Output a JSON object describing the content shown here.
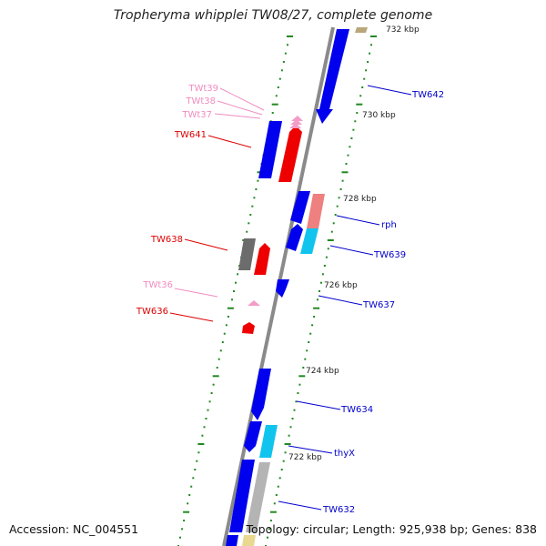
{
  "title": "Tropheryma whipplei TW08/27, complete genome",
  "footer": {
    "accession": "Accession: NC_004551",
    "topology": "Topology: circular; Length: 925,938 bp; Genes: 838"
  },
  "colors": {
    "cds_blue": "#0000ee",
    "trna_pink": "#f39cc8",
    "pseudo_red": "#ee0000",
    "rrna_salmon": "#ee8080",
    "cyan": "#11c4ee",
    "gray": "#777777",
    "backbone": "#888888",
    "ticks": "#228822"
  },
  "scale_labels": [
    "732 kbp",
    "730 kbp",
    "728 kbp",
    "726 kbp",
    "724 kbp",
    "722 kbp"
  ],
  "gene_labels": [
    {
      "text": "TW642",
      "color": "#0000cc"
    },
    {
      "text": "TWt39",
      "color": "#f08cc0"
    },
    {
      "text": "TWt38",
      "color": "#f08cc0"
    },
    {
      "text": "TWt37",
      "color": "#f08cc0"
    },
    {
      "text": "TW641",
      "color": "#dd0000"
    },
    {
      "text": "rph",
      "color": "#0000cc"
    },
    {
      "text": "TW638",
      "color": "#dd0000"
    },
    {
      "text": "TW639",
      "color": "#0000cc"
    },
    {
      "text": "TWt36",
      "color": "#f08cc0"
    },
    {
      "text": "TW637",
      "color": "#0000cc"
    },
    {
      "text": "TW636",
      "color": "#dd0000"
    },
    {
      "text": "TW634",
      "color": "#0000cc"
    },
    {
      "text": "thyX",
      "color": "#0000cc"
    },
    {
      "text": "TW632",
      "color": "#0000cc"
    }
  ]
}
